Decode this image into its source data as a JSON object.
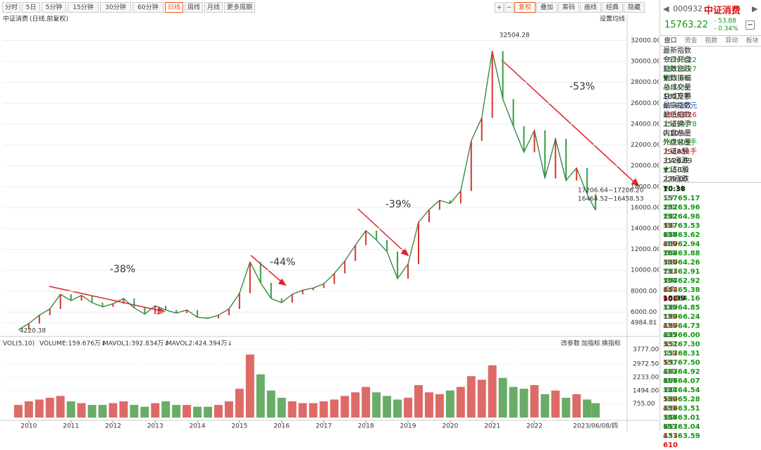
{
  "toolbar": {
    "periods": [
      "分时",
      "5日",
      "5分钟",
      "15分钟",
      "30分钟",
      "60分钟",
      "日线",
      "周线",
      "月线",
      "更多周期"
    ],
    "active": 6,
    "tools": [
      "+",
      "−",
      "复权",
      "叠加",
      "筹码",
      "画线",
      "经典",
      "隐藏"
    ]
  },
  "chart_data": {
    "type": "line",
    "title": "中证消费",
    "subtitle": "(日线,前复权)",
    "settings_label": "设置均线",
    "color": "#2f7f3a",
    "x": [
      2009.75,
      2010.0,
      2010.25,
      2010.5,
      2010.75,
      2011.0,
      2011.25,
      2011.5,
      2011.75,
      2012.0,
      2012.25,
      2012.5,
      2012.75,
      2013.0,
      2013.25,
      2013.5,
      2013.75,
      2014.0,
      2014.25,
      2014.5,
      2014.75,
      2015.0,
      2015.25,
      2015.5,
      2015.75,
      2016.0,
      2016.25,
      2016.5,
      2016.75,
      2017.0,
      2017.25,
      2017.5,
      2017.75,
      2018.0,
      2018.25,
      2018.5,
      2018.75,
      2019.0,
      2019.25,
      2019.5,
      2019.75,
      2020.0,
      2020.25,
      2020.5,
      2020.75,
      2021.0,
      2021.25,
      2021.5,
      2021.75,
      2022.0,
      2022.25,
      2022.5,
      2022.75,
      2023.0,
      2023.25,
      2023.45
    ],
    "values": [
      4300,
      4900,
      5700,
      6300,
      7700,
      7100,
      7600,
      6900,
      6500,
      6800,
      7300,
      6400,
      5800,
      6600,
      6200,
      5900,
      6200,
      5500,
      5400,
      5700,
      6300,
      7800,
      10800,
      8800,
      7300,
      6900,
      7700,
      8100,
      8300,
      8700,
      9700,
      10900,
      12400,
      13800,
      12900,
      11800,
      9200,
      10600,
      14600,
      15800,
      16700,
      16400,
      17600,
      22400,
      24600,
      31000,
      26400,
      23800,
      21300,
      23400,
      18800,
      22600,
      18600,
      19800,
      17300,
      15763.22
    ],
    "xlim": [
      2009.4,
      2024.2
    ],
    "ylim": [
      3800,
      34400
    ],
    "xticks": [
      2010,
      2011,
      2012,
      2013,
      2014,
      2015,
      2016,
      2017,
      2018,
      2019,
      2020,
      2021,
      2022
    ],
    "last_date": "2023/06/08/四",
    "yticks": [
      {
        "value": 32000,
        "label": "32000.00"
      },
      {
        "value": 30000,
        "label": "30000.00"
      },
      {
        "value": 28000,
        "label": "28000.00"
      },
      {
        "value": 26000,
        "label": "26000.00"
      },
      {
        "value": 24000,
        "label": "24000.00"
      },
      {
        "value": 22000,
        "label": "22000.00"
      },
      {
        "value": 20000,
        "label": "20000.00"
      },
      {
        "value": 18000,
        "label": "18000.00"
      },
      {
        "value": 16000,
        "label": "16000.00"
      },
      {
        "value": 14000,
        "label": "14000.00"
      },
      {
        "value": 12000,
        "label": "12000.00"
      },
      {
        "value": 10000,
        "label": "10000.00"
      },
      {
        "value": 8000,
        "label": "8000.00"
      },
      {
        "value": 6000,
        "label": "6000.00"
      },
      4984.81
    ],
    "max": 32504.28,
    "min": 4220.38,
    "annotations": [
      "-38%",
      "-44%",
      "-39%",
      "-53%",
      "17206.64~17206.20",
      "16464.52~16458.53"
    ]
  },
  "volume": {
    "header": [
      "VOL(5,10)",
      "VOLUME:159.676万↓",
      "MAVOL1:392.834万↓",
      "MAVOL2:424.394万↓"
    ],
    "buttons": [
      "改参数",
      "加指标",
      "换指标"
    ],
    "values": [
      700,
      900,
      1000,
      1100,
      1200,
      900,
      800,
      700,
      700,
      800,
      900,
      700,
      600,
      800,
      900,
      700,
      700,
      600,
      600,
      700,
      900,
      1600,
      3500,
      2400,
      1500,
      1100,
      900,
      800,
      800,
      900,
      1000,
      1200,
      1400,
      1700,
      1400,
      1200,
      1000,
      1100,
      1800,
      1400,
      1300,
      1500,
      1700,
      2300,
      2100,
      2900,
      2200,
      1700,
      1600,
      1800,
      1300,
      1500,
      1100,
      1300,
      1000,
      800
    ],
    "ylim": [
      0,
      4150
    ],
    "yticks": [
      {
        "value": 3777,
        "label": "3777.00"
      },
      {
        "value": 2972.5,
        "label": "2972.50"
      },
      {
        "value": 2233,
        "label": "2233.00"
      },
      {
        "value": 1494,
        "label": "1494.00"
      },
      {
        "value": 755,
        "label": "755.00"
      }
    ]
  },
  "panel": {
    "code": "000932",
    "name": "中证消费",
    "price": "15763.22",
    "change": "- 53.88",
    "pct": "- 0.34%",
    "minus": "−",
    "tabs": [
      "盘口",
      "资金",
      "指数",
      "异动",
      "板块"
    ],
    "info": [
      [
        "最新指数",
        "15763.22",
        "green"
      ],
      [
        "今日开盘",
        "15813.27",
        "green"
      ],
      [
        "指数涨跌",
        "▼53.88",
        "green"
      ],
      [
        "指数振幅",
        "-0.34%",
        "green"
      ],
      [
        "总成交量",
        "160万手",
        "black"
      ],
      [
        "总成交额",
        "67.42亿元",
        "blue"
      ],
      [
        "最高指数",
        "15883.26",
        "red"
      ],
      [
        "最低指数",
        "15695.78",
        "green"
      ],
      [
        "上证换手",
        "0.10%",
        "black"
      ],
      [
        "内盘总量",
        "797905手",
        "green"
      ],
      [
        "外盘总量",
        "798856手",
        "red"
      ],
      [
        "上证A股",
        "3126.89",
        "black"
      ],
      [
        "上A涨跌",
        "▼15.08",
        "green"
      ],
      [
        "上证B股",
        "229.00",
        "black"
      ],
      [
        "上B涨跌",
        "▼0.74",
        "green"
      ]
    ],
    "ticks": [
      [
        "10:38",
        "15765.17",
        "232",
        "green"
      ],
      [
        ":27",
        "15763.96",
        "272",
        "green"
      ],
      [
        ":30",
        "15764.98",
        "327",
        "red"
      ],
      [
        ":33",
        "15763.53",
        "676",
        "green"
      ],
      [
        ":36",
        "15763.62",
        "400",
        "red"
      ],
      [
        ":39",
        "15762.94",
        "768",
        "green"
      ],
      [
        ":42",
        "15763.88",
        "370",
        "red"
      ],
      [
        ":45",
        "15764.26",
        "713",
        "red"
      ],
      [
        ":48",
        "15762.91",
        "304",
        "green"
      ],
      [
        ":51",
        "15762.92",
        "844",
        "red"
      ],
      [
        ":54",
        "15765.38",
        "906",
        "red"
      ],
      [
        ":57",
        "15764.16",
        "379",
        "green"
      ],
      [
        "10:39",
        "15764.85",
        "199",
        "red"
      ],
      [
        ":03",
        "15766.24",
        "499",
        "red"
      ],
      [
        ":06",
        "15764.73",
        "425",
        "green"
      ],
      [
        ":09",
        "15766.00",
        "351",
        "red"
      ],
      [
        ":12",
        "15767.30",
        "153",
        "red"
      ],
      [
        ":15",
        "15768.31",
        "537",
        "red"
      ],
      [
        ":18",
        "15767.50",
        "463",
        "green"
      ],
      [
        ":21",
        "15764.92",
        "866",
        "green"
      ],
      [
        ":24",
        "15764.07",
        "324",
        "green"
      ],
      [
        ":27",
        "15764.54",
        "520",
        "red"
      ],
      [
        ":30",
        "15765.28",
        "436",
        "red"
      ],
      [
        ":33",
        "15763.51",
        "346",
        "green"
      ],
      [
        ":36",
        "15763.01",
        "613",
        "green"
      ],
      [
        ":39",
        "15763.04",
        "433",
        "red"
      ],
      [
        ":42",
        "15763.59",
        "610",
        "red"
      ]
    ]
  }
}
